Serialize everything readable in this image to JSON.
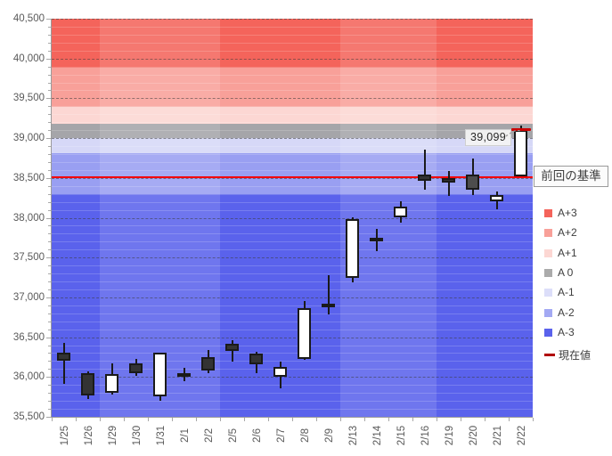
{
  "chart_data": {
    "type": "candlestick",
    "title": "",
    "x_labels": [
      "1/25",
      "1/26",
      "1/29",
      "1/30",
      "1/31",
      "2/1",
      "2/2",
      "2/5",
      "2/6",
      "2/7",
      "2/8",
      "2/9",
      "2/13",
      "2/14",
      "2/15",
      "2/16",
      "2/19",
      "2/20",
      "2/21",
      "2/22"
    ],
    "y_axis": {
      "min": 35500,
      "max": 40500,
      "major_step": 500,
      "minor_step": 100,
      "tick_values": [
        40500,
        40000,
        39500,
        39000,
        38500,
        38000,
        37500,
        37000,
        36500,
        36000,
        35500
      ],
      "tick_labels": [
        "40,500",
        "40,000",
        "39,500",
        "39,000",
        "38,500",
        "38,000",
        "37,500",
        "37,000",
        "36,500",
        "36,000",
        "35,500"
      ]
    },
    "bands": [
      {
        "label": "A+3",
        "from": 39890,
        "to": 40500,
        "color": "#f4645b"
      },
      {
        "label": "A+2",
        "from": 39390,
        "to": 39890,
        "color": "#f8a099"
      },
      {
        "label": "A+1",
        "from": 39185,
        "to": 39390,
        "color": "#fcd7d3"
      },
      {
        "label": "A 0",
        "from": 39000,
        "to": 39185,
        "color": "#a5a5a9"
      },
      {
        "label": "A-1",
        "from": 38810,
        "to": 39000,
        "color": "#d6d8f7"
      },
      {
        "label": "A-2",
        "from": 38295,
        "to": 38810,
        "color": "#999ff2"
      },
      {
        "label": "A-3",
        "from": 35500,
        "to": 38295,
        "color": "#5a62ec"
      }
    ],
    "light_week_column_ranges": [
      [
        2,
        6
      ],
      [
        12,
        15
      ]
    ],
    "candles": [
      {
        "date": "1/25",
        "open": 36300,
        "high": 36430,
        "low": 35920,
        "close": 36200,
        "fill": "dark"
      },
      {
        "date": "1/26",
        "open": 36050,
        "high": 36070,
        "low": 35720,
        "close": 35770,
        "fill": "dark"
      },
      {
        "date": "1/29",
        "open": 35800,
        "high": 36170,
        "low": 35780,
        "close": 36040,
        "fill": "white"
      },
      {
        "date": "1/30",
        "open": 36170,
        "high": 36230,
        "low": 36020,
        "close": 36050,
        "fill": "dark"
      },
      {
        "date": "1/31",
        "open": 35750,
        "high": 36310,
        "low": 35710,
        "close": 36300,
        "fill": "white"
      },
      {
        "date": "2/1",
        "open": 36045,
        "high": 36115,
        "low": 35950,
        "close": 36015,
        "fill": "dark"
      },
      {
        "date": "2/2",
        "open": 36250,
        "high": 36340,
        "low": 36050,
        "close": 36080,
        "fill": "dark"
      },
      {
        "date": "2/5",
        "open": 36420,
        "high": 36465,
        "low": 36200,
        "close": 36330,
        "fill": "dark"
      },
      {
        "date": "2/6",
        "open": 36290,
        "high": 36320,
        "low": 36050,
        "close": 36160,
        "fill": "dark"
      },
      {
        "date": "2/7",
        "open": 36010,
        "high": 36190,
        "low": 35860,
        "close": 36130,
        "fill": "white"
      },
      {
        "date": "2/8",
        "open": 36230,
        "high": 36950,
        "low": 36210,
        "close": 36870,
        "fill": "white"
      },
      {
        "date": "2/9",
        "open": 36920,
        "high": 37280,
        "low": 36790,
        "close": 36870,
        "fill": "dark"
      },
      {
        "date": "2/13",
        "open": 37240,
        "high": 38010,
        "low": 37190,
        "close": 37980,
        "fill": "white"
      },
      {
        "date": "2/14",
        "open": 37745,
        "high": 37860,
        "low": 37580,
        "close": 37700,
        "fill": "dark"
      },
      {
        "date": "2/15",
        "open": 38010,
        "high": 38205,
        "low": 37940,
        "close": 38145,
        "fill": "white"
      },
      {
        "date": "2/16",
        "open": 38540,
        "high": 38855,
        "low": 38350,
        "close": 38465,
        "fill": "dark"
      },
      {
        "date": "2/19",
        "open": 38500,
        "high": 38590,
        "low": 38280,
        "close": 38445,
        "fill": "dark"
      },
      {
        "date": "2/20",
        "open": 38540,
        "high": 38740,
        "low": 38285,
        "close": 38355,
        "fill": "gray"
      },
      {
        "date": "2/21",
        "open": 38205,
        "high": 38330,
        "low": 38110,
        "close": 38280,
        "fill": "white"
      },
      {
        "date": "2/22",
        "open": 38520,
        "high": 39155,
        "low": 38520,
        "close": 39099,
        "fill": "white"
      }
    ],
    "candle_colors": {
      "white": "#ffffff",
      "dark": "#333333",
      "gray": "#4d4d4d",
      "outline": "#1a1a1a"
    },
    "baseline": {
      "label": "前回の基準",
      "value": 38505,
      "color": "#f40000"
    },
    "current_value": {
      "label": "現在値",
      "annotation": "39,099",
      "value": 39099,
      "color": "#cc0000"
    },
    "legend": [
      {
        "label": "A+3",
        "color": "#f4645b",
        "marker": "square"
      },
      {
        "label": "A+2",
        "color": "#f8a099",
        "marker": "square"
      },
      {
        "label": "A+1",
        "color": "#fcd7d3",
        "marker": "square"
      },
      {
        "label": "A 0",
        "color": "#ababab",
        "marker": "square"
      },
      {
        "label": "A-1",
        "color": "#dcdef9",
        "marker": "square"
      },
      {
        "label": "A-2",
        "color": "#a3a9f3",
        "marker": "square"
      },
      {
        "label": "A-3",
        "color": "#5a62ec",
        "marker": "square"
      },
      {
        "label": "現在値",
        "color": "#b00000",
        "marker": "dash"
      }
    ],
    "legend_position": "right"
  }
}
